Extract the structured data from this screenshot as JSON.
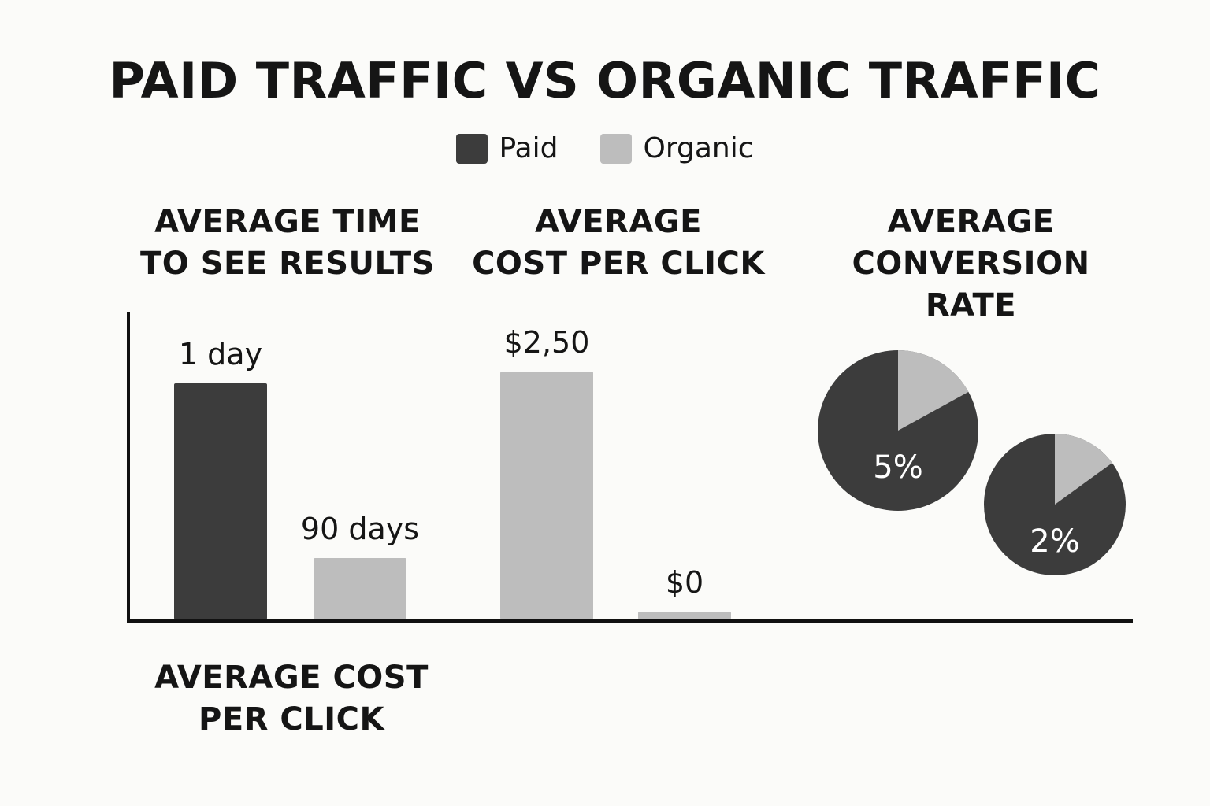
{
  "title": "PAID TRAFFIC VS ORGANIC TRAFFIC",
  "legend": {
    "paid": {
      "label": "Paid",
      "color": "#3c3c3c"
    },
    "organic": {
      "label": "Organic",
      "color": "#bdbdbd"
    }
  },
  "footer_label": "AVERAGE COST\nPER CLICK",
  "chart_data": [
    {
      "type": "bar",
      "title": "AVERAGE TIME\nTO SEE RESULTS",
      "categories": [
        "Paid",
        "Organic"
      ],
      "values": [
        1,
        90
      ],
      "value_labels": [
        "1 day",
        "90 days"
      ],
      "colors": [
        "#3c3c3c",
        "#bdbdbd"
      ]
    },
    {
      "type": "bar",
      "title": "AVERAGE\nCOST PER CLICK",
      "categories": [
        "Paid",
        "Organic"
      ],
      "values": [
        2.5,
        0
      ],
      "value_labels": [
        "$2,50",
        "$0"
      ],
      "colors": [
        "#bdbdbd",
        "#bdbdbd"
      ]
    },
    {
      "type": "pie",
      "title": "AVERAGE\nCONVERSION RATE",
      "slices": [
        {
          "series": "Paid",
          "value": 5,
          "label": "5%",
          "highlight_fraction": 0.17
        },
        {
          "series": "Organic",
          "value": 2,
          "label": "2%",
          "highlight_fraction": 0.15
        }
      ],
      "colors": [
        "#3c3c3c",
        "#bdbdbd"
      ]
    }
  ]
}
